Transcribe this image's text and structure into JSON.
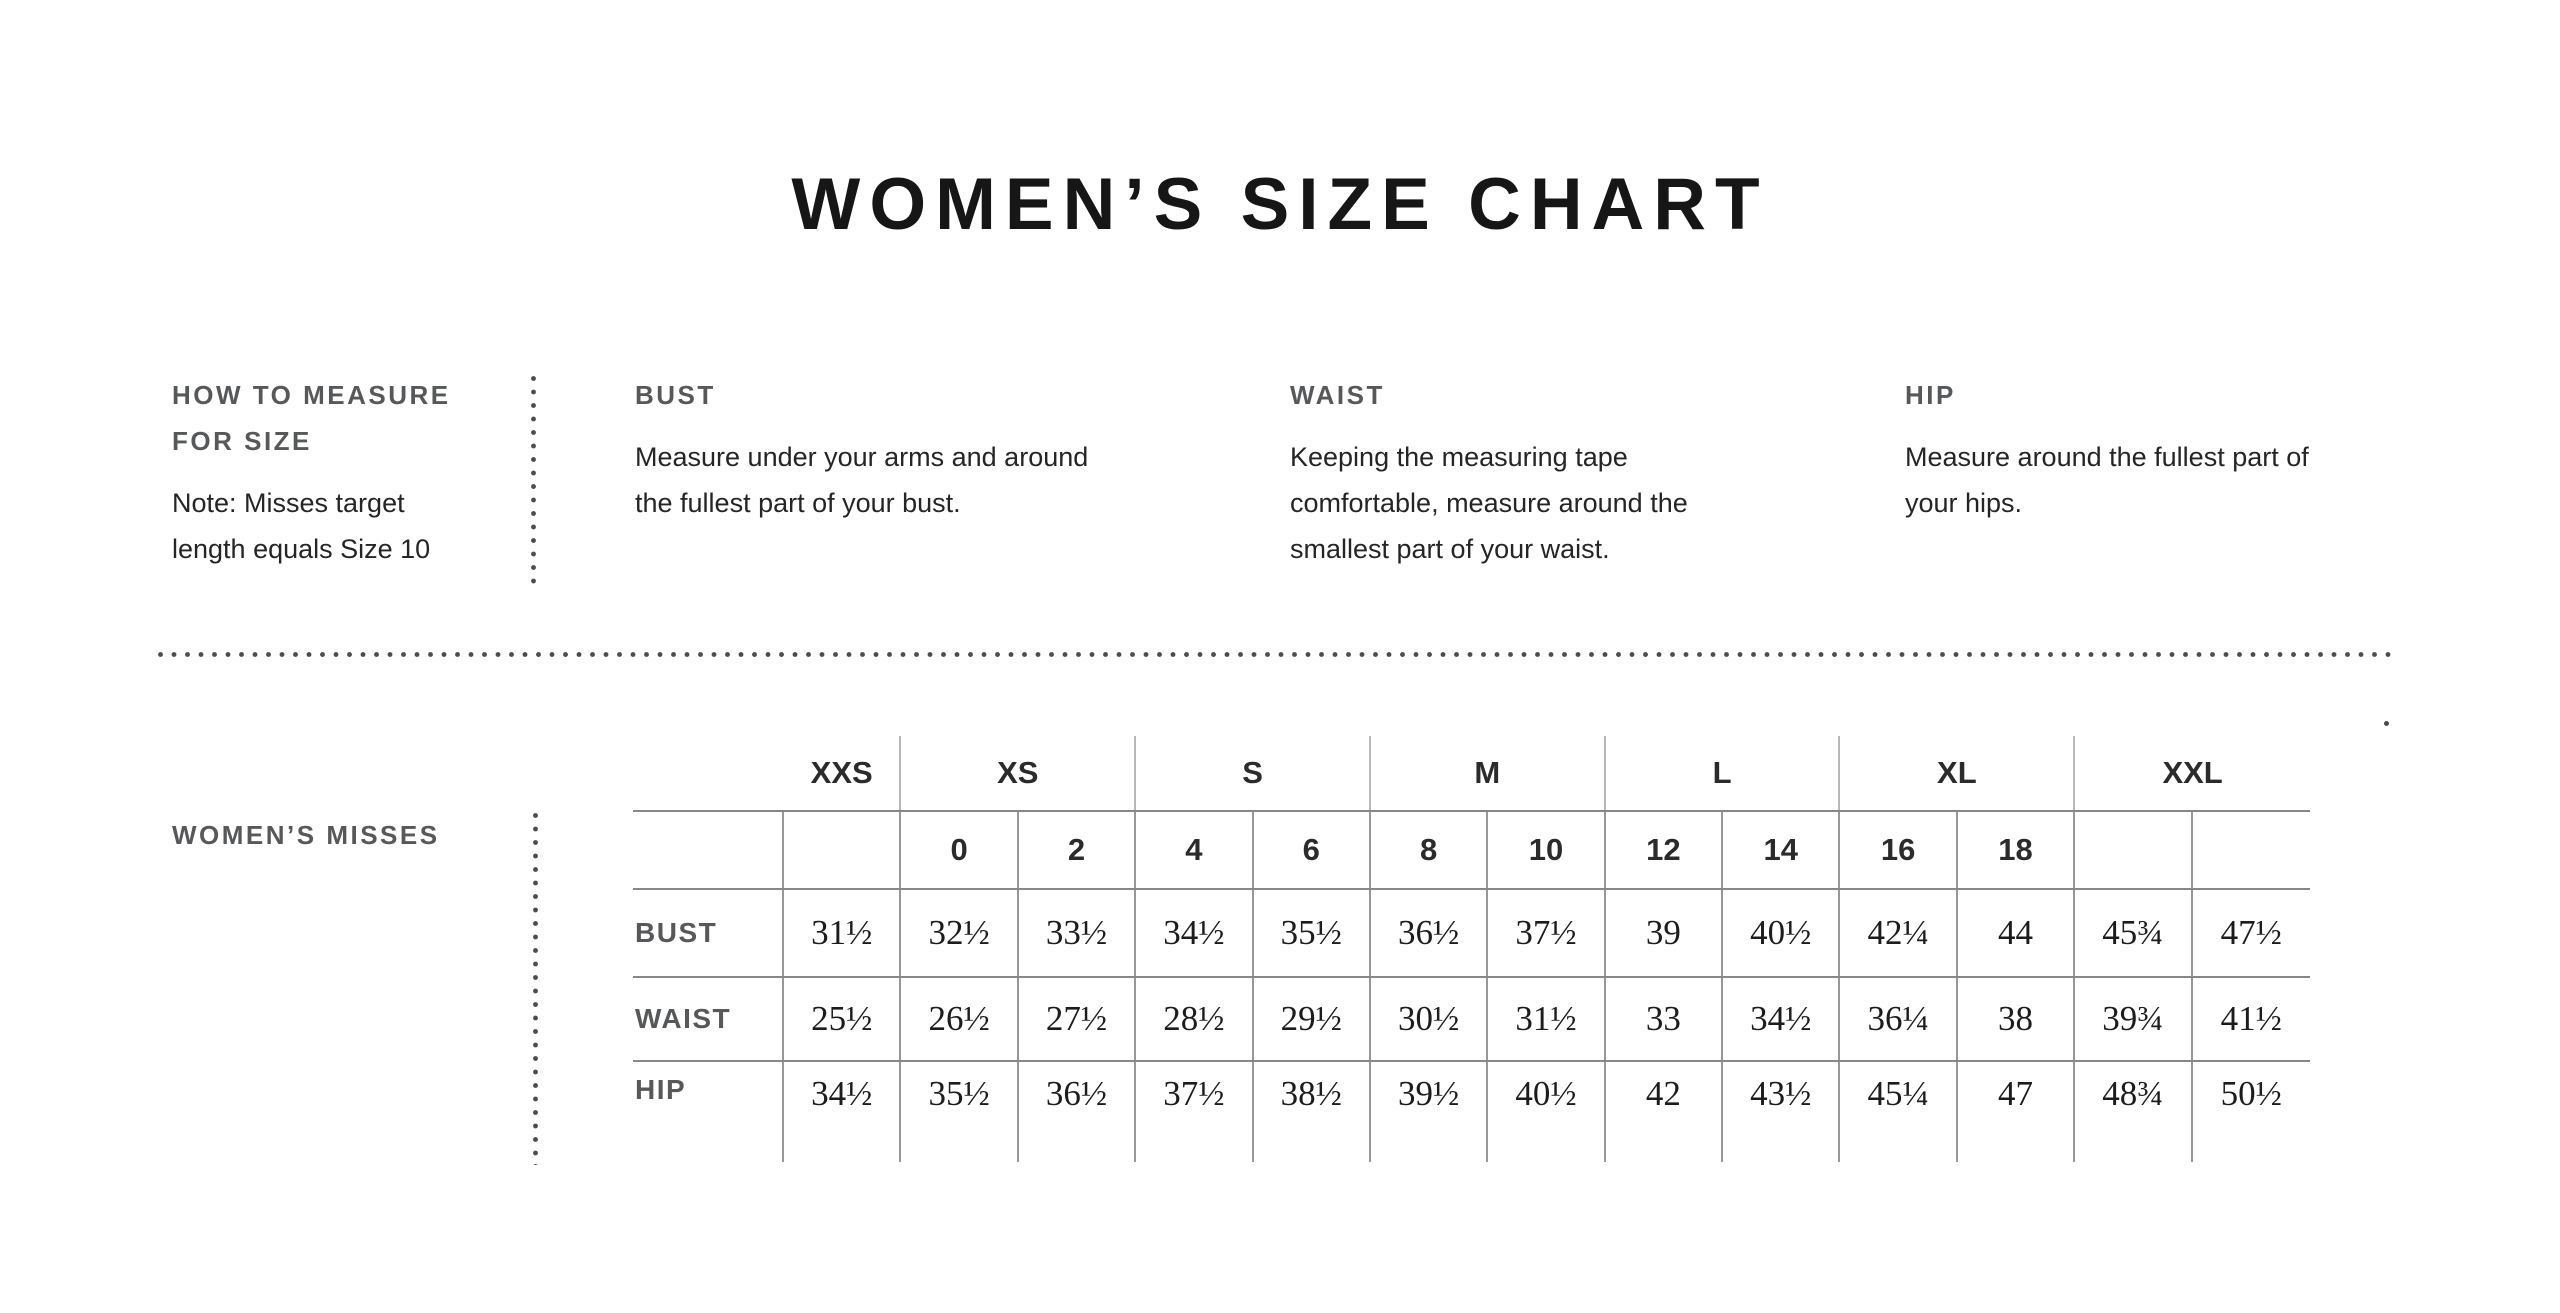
{
  "title": "WOMEN’S SIZE CHART",
  "how_to_measure": {
    "heading": "HOW TO MEASURE FOR SIZE",
    "note": "Note: Misses target length equals Size 10"
  },
  "measure_guides": [
    {
      "heading": "BUST",
      "text": "Measure under your arms and around the fullest part of your bust."
    },
    {
      "heading": "WAIST",
      "text": "Keeping the measuring tape comfortable, measure around the smallest part of your waist."
    },
    {
      "heading": "HIP",
      "text": "Measure around the fullest part of your hips."
    }
  ],
  "size_table": {
    "section_label": "WOMEN’S MISSES",
    "size_groups": [
      {
        "label": "XXS",
        "numeric_sizes": [
          ""
        ]
      },
      {
        "label": "XS",
        "numeric_sizes": [
          "0",
          "2"
        ]
      },
      {
        "label": "S",
        "numeric_sizes": [
          "4",
          "6"
        ]
      },
      {
        "label": "M",
        "numeric_sizes": [
          "8",
          "10"
        ]
      },
      {
        "label": "L",
        "numeric_sizes": [
          "12",
          "14"
        ]
      },
      {
        "label": "XL",
        "numeric_sizes": [
          "16",
          "18"
        ]
      },
      {
        "label": "XXL",
        "numeric_sizes": [
          "",
          ""
        ]
      }
    ],
    "measurement_rows": [
      {
        "label": "BUST",
        "values": [
          "31½",
          "32½",
          "33½",
          "34½",
          "35½",
          "36½",
          "37½",
          "39",
          "40½",
          "42¼",
          "44",
          "45¾",
          "47½"
        ]
      },
      {
        "label": "WAIST",
        "values": [
          "25½",
          "26½",
          "27½",
          "28½",
          "29½",
          "30½",
          "31½",
          "33",
          "34½",
          "36¼",
          "38",
          "39¾",
          "41½"
        ]
      },
      {
        "label": "HIP",
        "values": [
          "34½",
          "35½",
          "36½",
          "37½",
          "38½",
          "39½",
          "40½",
          "42",
          "43½",
          "45¼",
          "47",
          "48¾",
          "50½"
        ]
      }
    ]
  },
  "colors": {
    "heading_gray": "#57585a",
    "body_text": "#252525",
    "title_text": "#161616",
    "rule_gray": "#878787",
    "dot_gray": "#4c4c4c"
  }
}
